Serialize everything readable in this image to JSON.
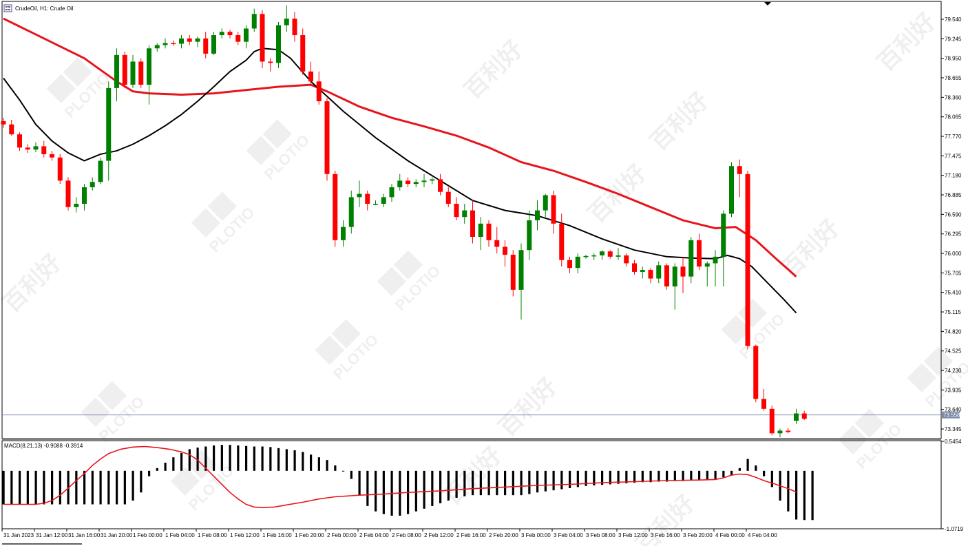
{
  "window": {
    "title": "CrudeOil, H1:  Crude Oil",
    "icon": "chart-window-icon"
  },
  "watermark": {
    "brand": "PLOTIO",
    "cjk": "百利好"
  },
  "colors": {
    "bull": "#008000",
    "bear": "#ff0000",
    "ma_fast": "#000000",
    "ma_slow": "#e8141c",
    "macd_hist": "#000000",
    "macd_signal": "#e8141c",
    "price_line": "#7a8aa8",
    "bid_label_bg": "#7a8aa8"
  },
  "chart_data": [
    {
      "type": "candlestick",
      "name": "price",
      "title": "CrudeOil, H1:  Crude Oil",
      "ylim": [
        73.2,
        79.8
      ],
      "y_ticks": [
        "79.540",
        "79.245",
        "78.950",
        "78.655",
        "78.360",
        "78.065",
        "77.770",
        "77.475",
        "77.180",
        "76.885",
        "76.590",
        "76.295",
        "76.000",
        "75.705",
        "75.410",
        "75.115",
        "74.820",
        "74.525",
        "74.230",
        "73.935",
        "73.640",
        "73.345"
      ],
      "current_price": "73.558",
      "candles": [
        [
          78.0,
          78.05,
          77.9,
          77.95
        ],
        [
          77.95,
          78.02,
          77.78,
          77.8
        ],
        [
          77.8,
          77.83,
          77.55,
          77.6
        ],
        [
          77.6,
          77.65,
          77.52,
          77.57
        ],
        [
          77.57,
          77.68,
          77.53,
          77.62
        ],
        [
          77.62,
          77.7,
          77.45,
          77.5
        ],
        [
          77.5,
          77.55,
          77.4,
          77.45
        ],
        [
          77.45,
          77.5,
          77.05,
          77.1
        ],
        [
          77.1,
          77.15,
          76.65,
          76.7
        ],
        [
          76.7,
          76.85,
          76.62,
          76.75
        ],
        [
          76.75,
          77.05,
          76.65,
          77.0
        ],
        [
          77.0,
          77.15,
          76.95,
          77.08
        ],
        [
          77.08,
          77.45,
          77.05,
          77.4
        ],
        [
          77.4,
          78.6,
          77.1,
          78.5
        ],
        [
          78.5,
          79.1,
          78.3,
          79.0
        ],
        [
          79.0,
          79.05,
          78.5,
          78.55
        ],
        [
          78.55,
          79.0,
          78.5,
          78.9
        ],
        [
          78.9,
          78.95,
          78.5,
          78.55
        ],
        [
          78.55,
          79.15,
          78.25,
          79.1
        ],
        [
          79.1,
          79.18,
          79.05,
          79.15
        ],
        [
          79.15,
          79.25,
          79.1,
          79.18
        ],
        [
          79.18,
          79.22,
          79.14,
          79.17
        ],
        [
          79.17,
          79.3,
          79.1,
          79.25
        ],
        [
          79.25,
          79.3,
          79.15,
          79.2
        ],
        [
          79.2,
          79.28,
          79.12,
          79.25
        ],
        [
          79.25,
          79.35,
          78.95,
          79.02
        ],
        [
          79.02,
          79.35,
          79.0,
          79.3
        ],
        [
          79.3,
          79.4,
          79.25,
          79.35
        ],
        [
          79.35,
          79.38,
          79.25,
          79.3
        ],
        [
          79.3,
          79.35,
          79.15,
          79.2
        ],
        [
          79.2,
          79.45,
          79.1,
          79.4
        ],
        [
          79.4,
          79.7,
          79.35,
          79.62
        ],
        [
          79.62,
          79.68,
          78.8,
          78.9
        ],
        [
          78.9,
          78.95,
          78.75,
          78.88
        ],
        [
          78.88,
          79.5,
          78.8,
          79.45
        ],
        [
          79.45,
          79.75,
          79.35,
          79.55
        ],
        [
          79.55,
          79.65,
          79.2,
          79.3
        ],
        [
          79.3,
          79.4,
          78.7,
          78.75
        ],
        [
          78.75,
          78.9,
          78.55,
          78.6
        ],
        [
          78.6,
          78.75,
          78.25,
          78.3
        ],
        [
          78.3,
          78.35,
          77.1,
          77.2
        ],
        [
          77.2,
          77.25,
          76.1,
          76.2
        ],
        [
          76.2,
          76.5,
          76.1,
          76.4
        ],
        [
          76.4,
          76.95,
          76.3,
          76.85
        ],
        [
          76.85,
          77.1,
          76.7,
          76.9
        ],
        [
          76.9,
          76.95,
          76.65,
          76.75
        ],
        [
          76.75,
          76.8,
          76.73,
          76.75
        ],
        [
          76.75,
          76.9,
          76.7,
          76.85
        ],
        [
          76.85,
          77.05,
          76.78,
          77.0
        ],
        [
          77.0,
          77.2,
          76.95,
          77.1
        ],
        [
          77.1,
          77.15,
          77.0,
          77.05
        ],
        [
          77.05,
          77.12,
          77.0,
          77.08
        ],
        [
          77.08,
          77.2,
          77.0,
          77.1
        ],
        [
          77.1,
          77.15,
          77.05,
          77.12
        ],
        [
          77.12,
          77.2,
          76.88,
          76.93
        ],
        [
          76.93,
          77.0,
          76.7,
          76.75
        ],
        [
          76.75,
          76.85,
          76.5,
          76.55
        ],
        [
          76.55,
          76.75,
          76.45,
          76.65
        ],
        [
          76.65,
          76.8,
          76.15,
          76.25
        ],
        [
          76.25,
          76.55,
          76.05,
          76.45
        ],
        [
          76.45,
          76.5,
          76.1,
          76.2
        ],
        [
          76.2,
          76.4,
          76.0,
          76.1
        ],
        [
          76.1,
          76.2,
          75.8,
          75.98
        ],
        [
          75.98,
          76.05,
          75.35,
          75.45
        ],
        [
          75.45,
          76.15,
          75.0,
          76.05
        ],
        [
          76.05,
          76.65,
          75.9,
          76.5
        ],
        [
          76.5,
          76.8,
          76.35,
          76.65
        ],
        [
          76.65,
          76.9,
          76.55,
          76.88
        ],
        [
          76.88,
          76.95,
          76.3,
          76.45
        ],
        [
          76.45,
          76.6,
          75.8,
          75.9
        ],
        [
          75.9,
          75.95,
          75.7,
          75.78
        ],
        [
          75.78,
          76.0,
          75.7,
          75.95
        ],
        [
          75.95,
          75.98,
          75.92,
          75.96
        ],
        [
          75.96,
          76.0,
          75.9,
          75.97
        ],
        [
          75.97,
          76.05,
          75.9,
          76.03
        ],
        [
          76.03,
          76.05,
          75.92,
          75.95
        ],
        [
          75.95,
          76.08,
          75.9,
          75.97
        ],
        [
          75.97,
          76.0,
          75.8,
          75.85
        ],
        [
          75.85,
          75.9,
          75.68,
          75.72
        ],
        [
          75.72,
          75.8,
          75.62,
          75.75
        ],
        [
          75.75,
          75.78,
          75.55,
          75.62
        ],
        [
          75.62,
          75.88,
          75.55,
          75.82
        ],
        [
          75.82,
          75.85,
          75.45,
          75.5
        ],
        [
          75.5,
          75.85,
          75.15,
          75.8
        ],
        [
          75.8,
          75.95,
          75.4,
          75.65
        ],
        [
          75.65,
          76.25,
          75.55,
          76.2
        ],
        [
          76.2,
          76.3,
          75.75,
          75.8
        ],
        [
          75.8,
          75.88,
          75.5,
          75.85
        ],
        [
          75.85,
          76.05,
          75.5,
          75.95
        ],
        [
          75.95,
          76.65,
          75.5,
          76.6
        ],
        [
          76.6,
          77.38,
          76.55,
          77.32
        ],
        [
          77.32,
          77.42,
          76.85,
          77.2
        ],
        [
          77.2,
          77.25,
          74.55,
          74.6
        ],
        [
          74.6,
          74.62,
          73.75,
          73.8
        ],
        [
          73.8,
          73.95,
          73.62,
          73.65
        ],
        [
          73.65,
          73.7,
          73.25,
          73.28
        ],
        [
          73.28,
          73.35,
          73.22,
          73.32
        ],
        [
          73.32,
          73.36,
          73.28,
          73.3
        ],
        [
          73.47,
          73.65,
          73.42,
          73.58
        ],
        [
          73.58,
          73.62,
          73.48,
          73.5
        ]
      ],
      "ma_fast": [
        [
          0,
          78.65
        ],
        [
          8,
          78.32
        ],
        [
          16,
          77.95
        ],
        [
          24,
          77.7
        ],
        [
          32,
          77.52
        ],
        [
          40,
          77.4
        ],
        [
          48,
          77.5
        ],
        [
          56,
          77.55
        ],
        [
          64,
          77.65
        ],
        [
          72,
          77.78
        ],
        [
          80,
          77.93
        ],
        [
          88,
          78.1
        ],
        [
          96,
          78.3
        ],
        [
          104,
          78.52
        ],
        [
          112,
          78.75
        ],
        [
          120,
          78.92
        ],
        [
          124,
          79.05
        ],
        [
          128,
          79.1
        ],
        [
          136,
          79.08
        ],
        [
          142,
          78.95
        ],
        [
          152,
          78.6
        ],
        [
          168,
          78.15
        ],
        [
          184,
          77.75
        ],
        [
          200,
          77.4
        ],
        [
          216,
          77.1
        ],
        [
          232,
          76.8
        ],
        [
          248,
          76.65
        ],
        [
          264,
          76.57
        ],
        [
          280,
          76.42
        ],
        [
          296,
          76.22
        ],
        [
          312,
          76.05
        ],
        [
          328,
          75.95
        ],
        [
          340,
          75.93
        ],
        [
          352,
          75.92
        ],
        [
          358,
          75.97
        ],
        [
          364,
          75.92
        ],
        [
          370,
          75.8
        ],
        [
          378,
          75.55
        ],
        [
          386,
          75.3
        ],
        [
          392,
          75.1
        ]
      ],
      "ma_slow": [
        [
          0,
          79.55
        ],
        [
          20,
          79.25
        ],
        [
          40,
          78.95
        ],
        [
          56,
          78.6
        ],
        [
          64,
          78.45
        ],
        [
          72,
          78.42
        ],
        [
          88,
          78.4
        ],
        [
          104,
          78.42
        ],
        [
          120,
          78.47
        ],
        [
          136,
          78.52
        ],
        [
          152,
          78.55
        ],
        [
          160,
          78.45
        ],
        [
          176,
          78.22
        ],
        [
          192,
          78.05
        ],
        [
          208,
          77.92
        ],
        [
          224,
          77.78
        ],
        [
          240,
          77.6
        ],
        [
          256,
          77.38
        ],
        [
          272,
          77.25
        ],
        [
          288,
          77.08
        ],
        [
          304,
          76.9
        ],
        [
          320,
          76.7
        ],
        [
          336,
          76.5
        ],
        [
          352,
          76.38
        ],
        [
          362,
          76.4
        ],
        [
          372,
          76.2
        ],
        [
          382,
          75.92
        ],
        [
          392,
          75.65
        ]
      ]
    },
    {
      "type": "bar",
      "name": "macd",
      "title": "MACD(8,21,13) -0.9088 -0.3914",
      "ylim": [
        -1.0719,
        0.5454
      ],
      "y_ticks": [
        "0.5454",
        "-1.0719"
      ],
      "histogram": [
        -0.62,
        -0.62,
        -0.62,
        -0.62,
        -0.62,
        -0.62,
        -0.62,
        -0.62,
        -0.62,
        -0.62,
        -0.62,
        -0.62,
        -0.62,
        -0.62,
        -0.62,
        -0.62,
        -0.55,
        -0.4,
        -0.1,
        0.05,
        0.15,
        0.25,
        0.33,
        0.4,
        0.43,
        0.45,
        0.47,
        0.48,
        0.48,
        0.47,
        0.46,
        0.45,
        0.45,
        0.44,
        0.42,
        0.4,
        0.38,
        0.35,
        0.3,
        0.25,
        0.2,
        0.1,
        0.0,
        -0.15,
        -0.45,
        -0.65,
        -0.75,
        -0.8,
        -0.83,
        -0.83,
        -0.8,
        -0.75,
        -0.7,
        -0.65,
        -0.6,
        -0.55,
        -0.5,
        -0.47,
        -0.45,
        -0.45,
        -0.45,
        -0.45,
        -0.45,
        -0.45,
        -0.45,
        -0.43,
        -0.4,
        -0.38,
        -0.36,
        -0.34,
        -0.32,
        -0.3,
        -0.28,
        -0.27,
        -0.26,
        -0.25,
        -0.24,
        -0.23,
        -0.22,
        -0.21,
        -0.21,
        -0.2,
        -0.2,
        -0.19,
        -0.19,
        -0.18,
        -0.17,
        -0.16,
        -0.15,
        -0.12,
        -0.08,
        0.05,
        0.22,
        0.1,
        -0.1,
        -0.3,
        -0.55,
        -0.75,
        -0.9,
        -0.91,
        -0.91
      ],
      "signal": [
        [
          0,
          -0.62
        ],
        [
          16,
          -0.62
        ],
        [
          20,
          -0.6
        ],
        [
          24,
          -0.55
        ],
        [
          28,
          -0.45
        ],
        [
          32,
          -0.32
        ],
        [
          36,
          -0.18
        ],
        [
          40,
          -0.05
        ],
        [
          44,
          0.1
        ],
        [
          48,
          0.22
        ],
        [
          52,
          0.32
        ],
        [
          58,
          0.4
        ],
        [
          64,
          0.44
        ],
        [
          70,
          0.45
        ],
        [
          76,
          0.43
        ],
        [
          82,
          0.4
        ],
        [
          88,
          0.35
        ],
        [
          92,
          0.3
        ],
        [
          96,
          0.2
        ],
        [
          100,
          0.05
        ],
        [
          104,
          -0.1
        ],
        [
          108,
          -0.25
        ],
        [
          112,
          -0.4
        ],
        [
          116,
          -0.52
        ],
        [
          120,
          -0.62
        ],
        [
          124,
          -0.67
        ],
        [
          128,
          -0.68
        ],
        [
          134,
          -0.67
        ],
        [
          140,
          -0.63
        ],
        [
          148,
          -0.58
        ],
        [
          156,
          -0.52
        ],
        [
          164,
          -0.48
        ],
        [
          176,
          -0.45
        ],
        [
          188,
          -0.43
        ],
        [
          200,
          -0.4
        ],
        [
          216,
          -0.37
        ],
        [
          232,
          -0.33
        ],
        [
          248,
          -0.3
        ],
        [
          264,
          -0.27
        ],
        [
          280,
          -0.25
        ],
        [
          296,
          -0.22
        ],
        [
          312,
          -0.2
        ],
        [
          328,
          -0.18
        ],
        [
          344,
          -0.17
        ],
        [
          352,
          -0.16
        ],
        [
          356,
          -0.13
        ],
        [
          360,
          -0.08
        ],
        [
          364,
          -0.06
        ],
        [
          368,
          -0.07
        ],
        [
          372,
          -0.12
        ],
        [
          376,
          -0.18
        ],
        [
          382,
          -0.25
        ],
        [
          388,
          -0.33
        ],
        [
          392,
          -0.39
        ]
      ]
    }
  ],
  "time_axis": {
    "labels": [
      "31 Jan 2023",
      "31 Jan 12:00",
      "31 Jan 16:00",
      "31 Jan 20:00",
      "1 Feb 00:00",
      "1 Feb 04:00",
      "1 Feb 08:00",
      "1 Feb 12:00",
      "1 Feb 16:00",
      "1 Feb 20:00",
      "2 Feb 00:00",
      "2 Feb 04:00",
      "2 Feb 08:00",
      "2 Feb 12:00",
      "2 Feb 16:00",
      "2 Feb 20:00",
      "3 Feb 00:00",
      "3 Feb 04:00",
      "3 Feb 08:00",
      "3 Feb 12:00",
      "3 Feb 16:00",
      "3 Feb 20:00",
      "4 Feb 00:00",
      "4 Feb 04:00"
    ]
  }
}
